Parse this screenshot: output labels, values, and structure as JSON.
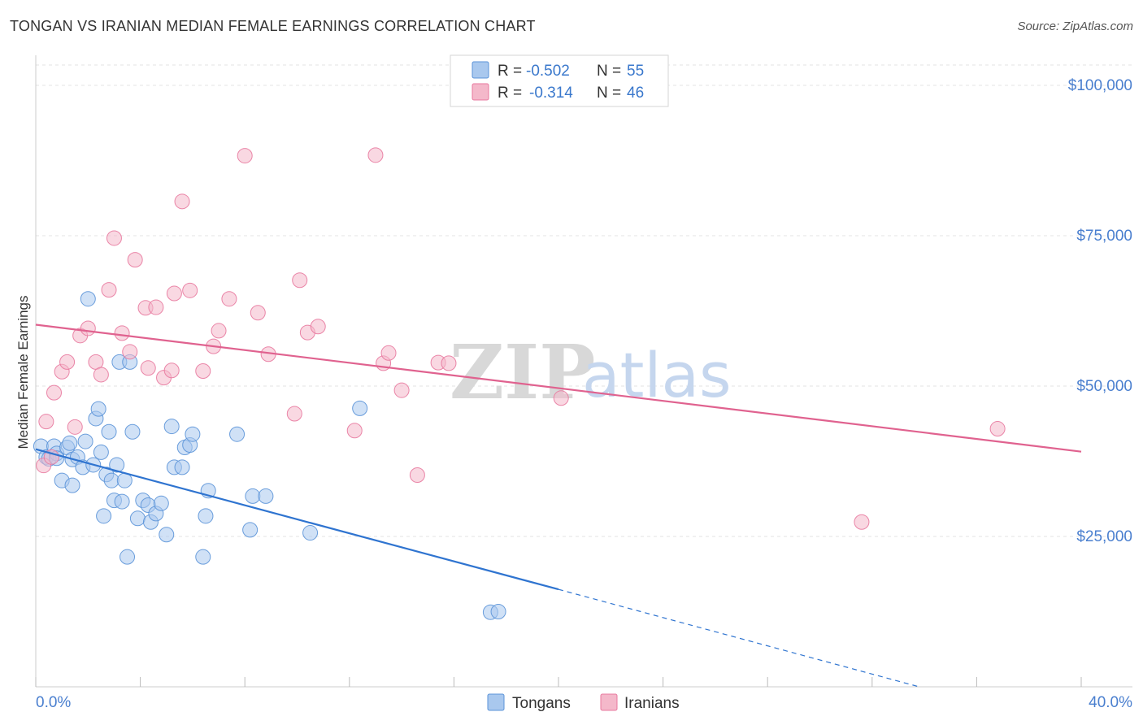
{
  "header": {
    "title": "TONGAN VS IRANIAN MEDIAN FEMALE EARNINGS CORRELATION CHART",
    "source": "Source: ZipAtlas.com"
  },
  "watermark": {
    "zip": "ZIP",
    "atlas": "atlas"
  },
  "legend": {
    "rows": [
      {
        "r_label": "R =",
        "r_value": "-0.502",
        "n_label": "N =",
        "n_value": "55",
        "color": "#a9c8ee"
      },
      {
        "r_label": "R =",
        "r_value": "-0.314",
        "n_label": "N =",
        "n_value": "46",
        "color": "#f4b8ca"
      }
    ]
  },
  "bottom_legend": {
    "tongans": "Tongans",
    "iranians": "Iranians"
  },
  "chart_data": {
    "type": "scatter",
    "title": "TONGAN VS IRANIAN MEDIAN FEMALE EARNINGS CORRELATION CHART",
    "xlabel": "",
    "ylabel": "Median Female Earnings",
    "xlim": [
      0,
      40
    ],
    "ylim": [
      0,
      105000
    ],
    "x_tick_labels": [
      "0.0%",
      "40.0%"
    ],
    "y_ticks": [
      {
        "value": 25000,
        "label": "$25,000"
      },
      {
        "value": 50000,
        "label": "$50,000"
      },
      {
        "value": 75000,
        "label": "$75,000"
      },
      {
        "value": 100000,
        "label": "$100,000"
      }
    ],
    "series": [
      {
        "name": "Tongans",
        "color": "#5b93d8",
        "fill": "#a9c8ee",
        "r": -0.502,
        "n": 55,
        "trend": {
          "x0": 0,
          "y0": 39500,
          "x1": 20,
          "y1": 16200,
          "dash_to_x": 33.8,
          "dash_to_y": 0
        },
        "points": [
          [
            0.2,
            40.0
          ],
          [
            0.4,
            38.2
          ],
          [
            0.5,
            37.9
          ],
          [
            0.7,
            40.0
          ],
          [
            0.8,
            38.8
          ],
          [
            0.8,
            38.0
          ],
          [
            1.0,
            34.3
          ],
          [
            1.2,
            39.8
          ],
          [
            1.3,
            40.5
          ],
          [
            1.4,
            37.8
          ],
          [
            1.4,
            33.5
          ],
          [
            1.6,
            38.2
          ],
          [
            1.8,
            36.5
          ],
          [
            1.9,
            40.8
          ],
          [
            2.0,
            64.5
          ],
          [
            2.2,
            36.9
          ],
          [
            2.3,
            44.6
          ],
          [
            2.4,
            46.2
          ],
          [
            2.5,
            39.0
          ],
          [
            2.6,
            28.4
          ],
          [
            2.7,
            35.3
          ],
          [
            2.8,
            42.4
          ],
          [
            2.9,
            34.3
          ],
          [
            3.0,
            31.0
          ],
          [
            3.1,
            36.9
          ],
          [
            3.2,
            54.0
          ],
          [
            3.3,
            30.8
          ],
          [
            3.4,
            34.3
          ],
          [
            3.5,
            21.6
          ],
          [
            3.6,
            54.0
          ],
          [
            3.7,
            42.4
          ],
          [
            3.9,
            28.0
          ],
          [
            4.1,
            31.0
          ],
          [
            4.3,
            30.2
          ],
          [
            4.4,
            27.4
          ],
          [
            4.6,
            28.8
          ],
          [
            4.8,
            30.5
          ],
          [
            5.0,
            25.3
          ],
          [
            5.2,
            43.3
          ],
          [
            5.3,
            36.5
          ],
          [
            5.6,
            36.5
          ],
          [
            5.7,
            39.8
          ],
          [
            5.9,
            40.2
          ],
          [
            6.0,
            42.0
          ],
          [
            6.4,
            21.6
          ],
          [
            6.5,
            28.4
          ],
          [
            6.6,
            32.6
          ],
          [
            7.7,
            42.0
          ],
          [
            8.2,
            26.1
          ],
          [
            8.3,
            31.7
          ],
          [
            8.8,
            31.7
          ],
          [
            10.5,
            25.6
          ],
          [
            12.4,
            46.3
          ],
          [
            17.4,
            12.4
          ],
          [
            17.7,
            12.5
          ]
        ]
      },
      {
        "name": "Iranians",
        "color": "#e8799f",
        "fill": "#f4b8ca",
        "r": -0.314,
        "n": 46,
        "trend": {
          "x0": 0,
          "y0": 60200,
          "x1": 40,
          "y1": 39100
        },
        "points": [
          [
            0.3,
            36.8
          ],
          [
            0.4,
            44.1
          ],
          [
            0.6,
            38.2
          ],
          [
            0.7,
            48.9
          ],
          [
            1.0,
            52.4
          ],
          [
            1.2,
            54.0
          ],
          [
            1.5,
            43.2
          ],
          [
            1.7,
            58.4
          ],
          [
            2.0,
            59.6
          ],
          [
            2.3,
            54.0
          ],
          [
            2.5,
            51.9
          ],
          [
            2.8,
            66.0
          ],
          [
            3.0,
            74.6
          ],
          [
            3.3,
            58.8
          ],
          [
            3.6,
            55.7
          ],
          [
            3.8,
            71.0
          ],
          [
            4.2,
            63.0
          ],
          [
            4.3,
            53.0
          ],
          [
            4.6,
            63.1
          ],
          [
            4.9,
            51.4
          ],
          [
            5.2,
            52.6
          ],
          [
            5.3,
            65.4
          ],
          [
            5.6,
            80.7
          ],
          [
            5.9,
            65.9
          ],
          [
            6.4,
            52.5
          ],
          [
            6.8,
            56.6
          ],
          [
            7.0,
            59.2
          ],
          [
            7.4,
            64.5
          ],
          [
            8.0,
            88.3
          ],
          [
            8.5,
            62.2
          ],
          [
            8.9,
            55.3
          ],
          [
            9.9,
            45.4
          ],
          [
            10.1,
            67.6
          ],
          [
            10.4,
            58.9
          ],
          [
            10.8,
            59.9
          ],
          [
            12.2,
            42.6
          ],
          [
            13.0,
            88.4
          ],
          [
            13.3,
            53.8
          ],
          [
            13.5,
            55.5
          ],
          [
            14.0,
            49.3
          ],
          [
            14.6,
            35.2
          ],
          [
            15.4,
            53.9
          ],
          [
            15.8,
            53.8
          ],
          [
            20.1,
            48.0
          ],
          [
            31.6,
            27.4
          ],
          [
            36.8,
            42.9
          ]
        ]
      }
    ]
  }
}
